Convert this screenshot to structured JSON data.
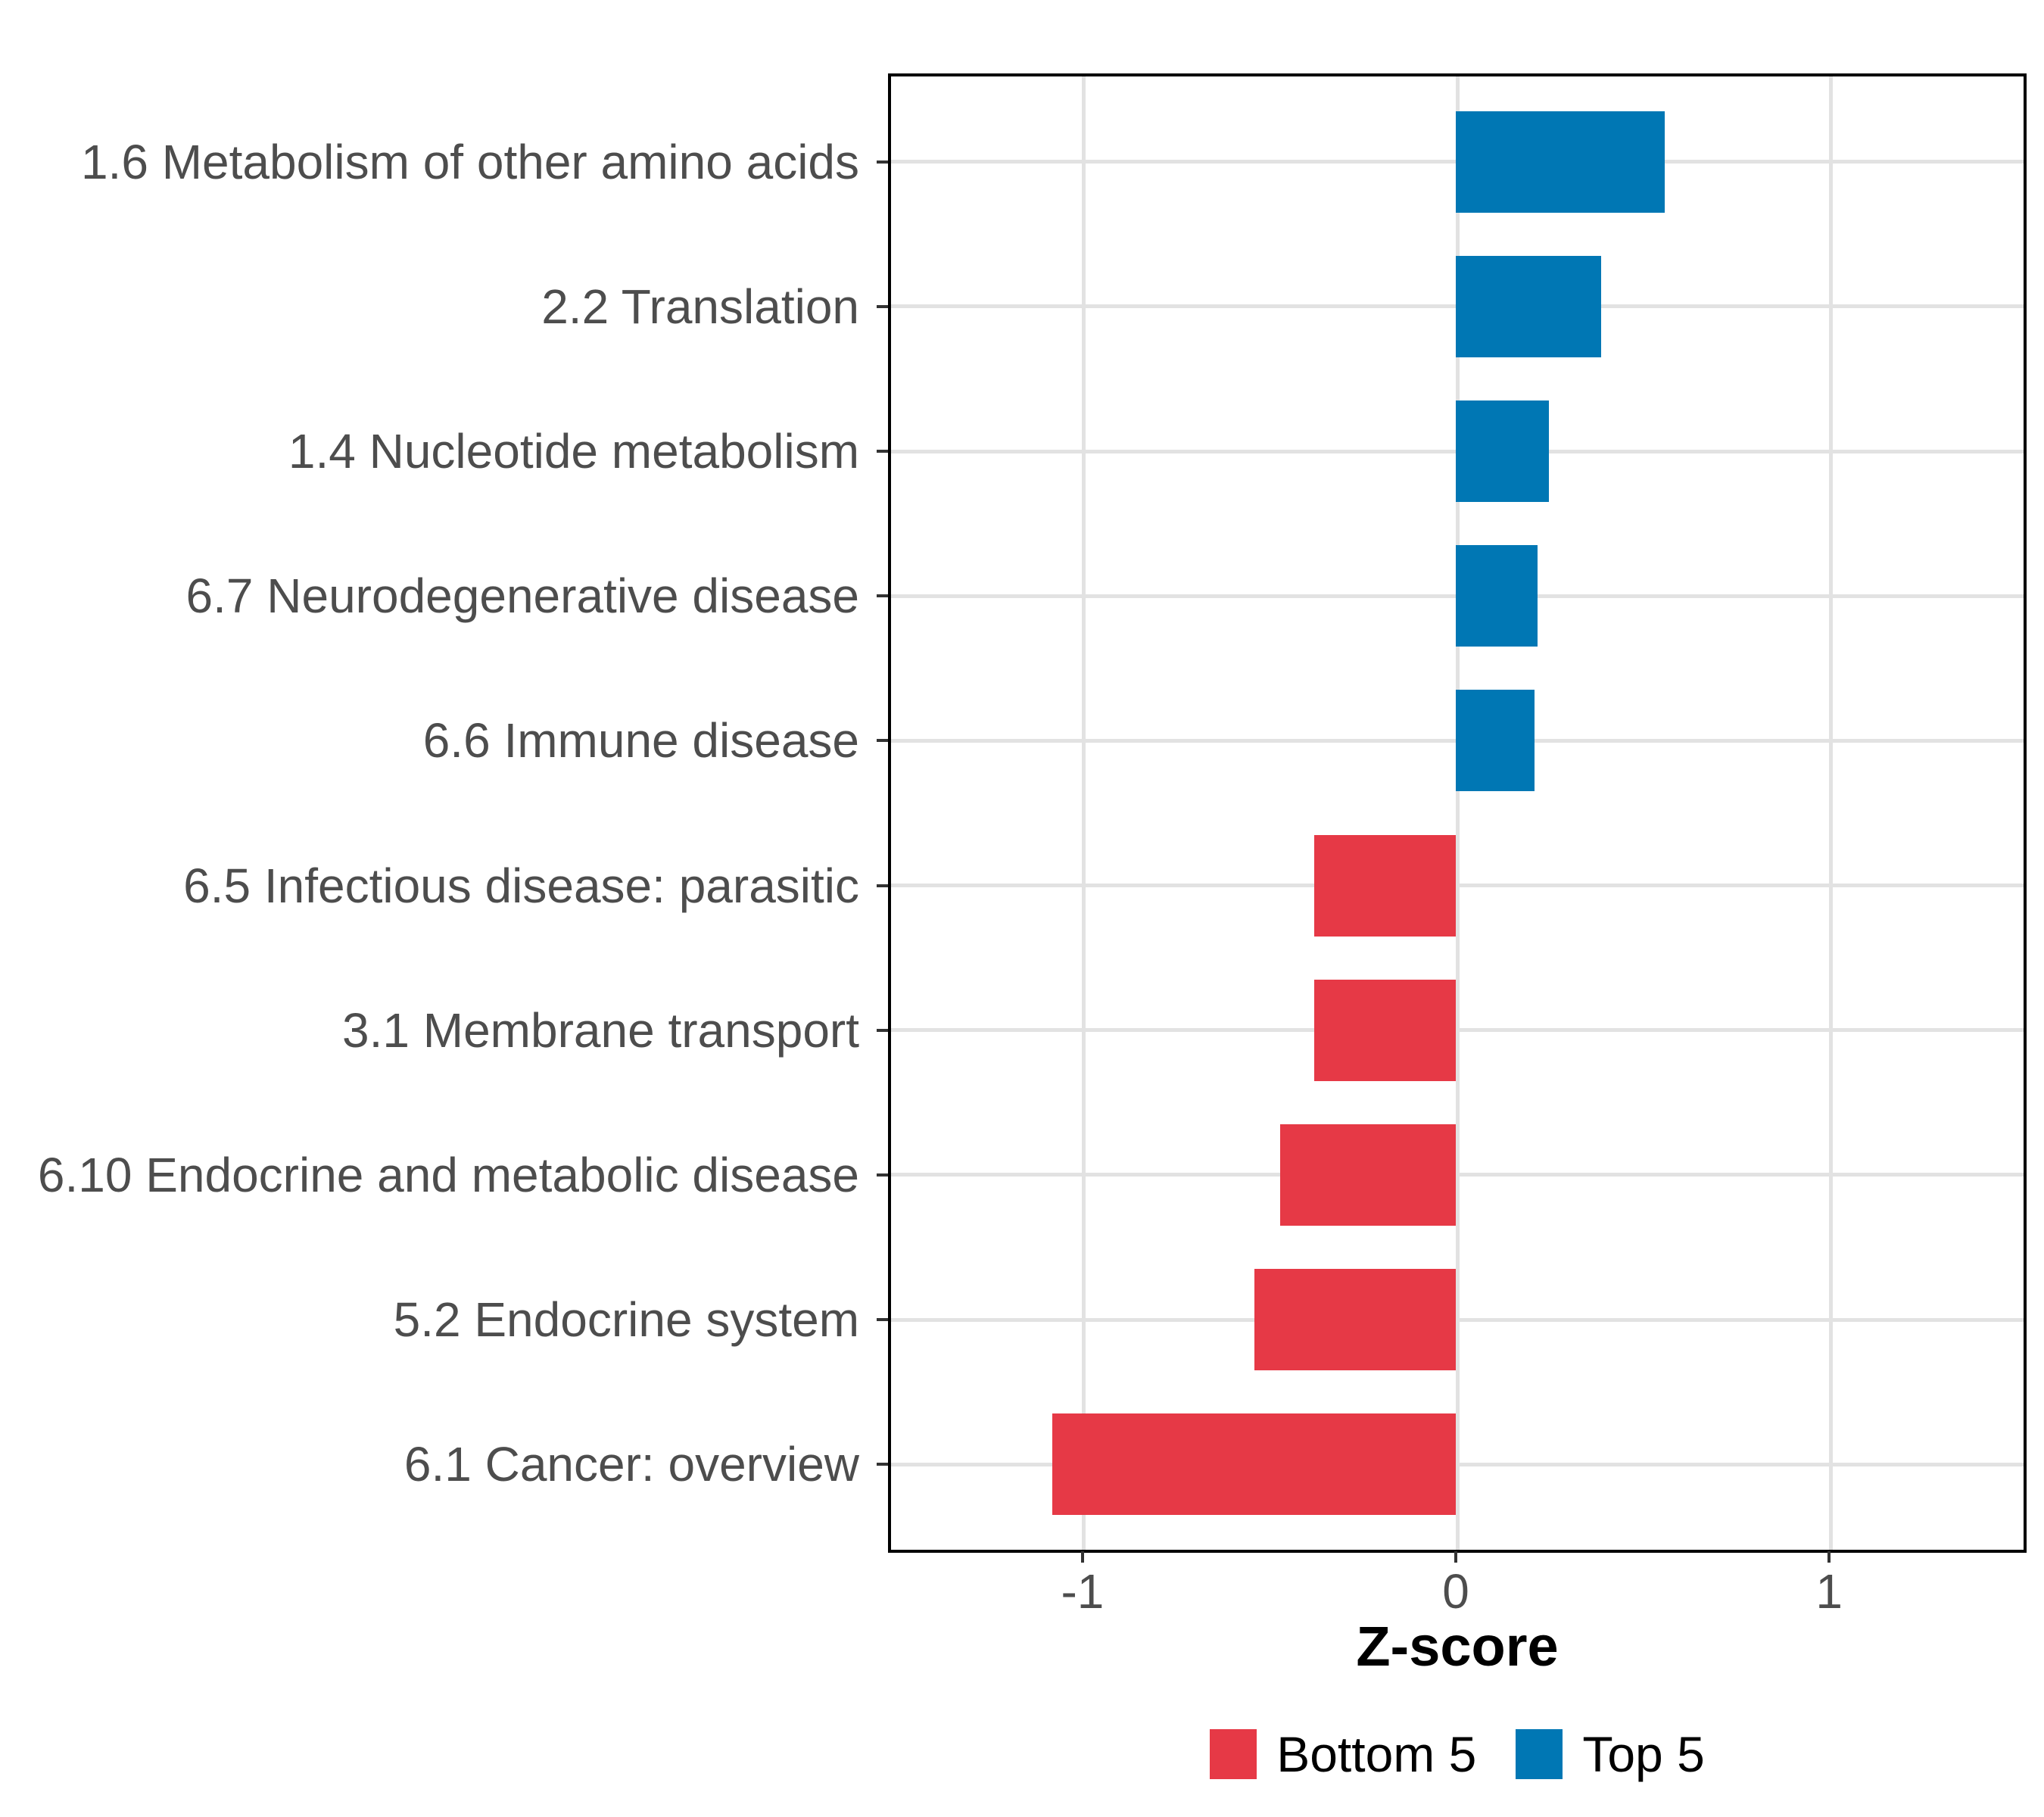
{
  "chart_data": {
    "type": "bar",
    "orientation": "horizontal",
    "title": "",
    "xlabel": "Z-score",
    "ylabel": "",
    "categories": [
      "1.6 Metabolism of other amino acids",
      "2.2 Translation",
      "1.4 Nucleotide metabolism",
      "6.7 Neurodegenerative disease",
      "6.6 Immune disease",
      "6.5 Infectious disease: parasitic",
      "3.1 Membrane transport",
      "6.10 Endocrine and metabolic disease",
      "5.2 Endocrine system",
      "6.1 Cancer: overview"
    ],
    "values": [
      0.56,
      0.39,
      0.25,
      0.22,
      0.21,
      -0.38,
      -0.38,
      -0.47,
      -0.54,
      -1.08
    ],
    "groups": [
      "Top 5",
      "Top 5",
      "Top 5",
      "Top 5",
      "Top 5",
      "Bottom 5",
      "Bottom 5",
      "Bottom 5",
      "Bottom 5",
      "Bottom 5"
    ],
    "x_ticks": [
      -1,
      0,
      1
    ],
    "x_tick_labels": [
      "-1",
      "0",
      "1"
    ],
    "xlim": [
      -1.517,
      1.525
    ],
    "grid": "major",
    "legend": {
      "position": "bottom",
      "entries": [
        {
          "label": "Bottom 5",
          "color": "#E63946"
        },
        {
          "label": "Top 5",
          "color": "#0077B4"
        }
      ]
    },
    "colors": {
      "bottom5": "#E63946",
      "top5": "#0077B4",
      "axis_text": "#4D4D4D",
      "gridline": "#E2E2E2",
      "panel_border": "#000000",
      "tick_mark": "#333333"
    }
  }
}
